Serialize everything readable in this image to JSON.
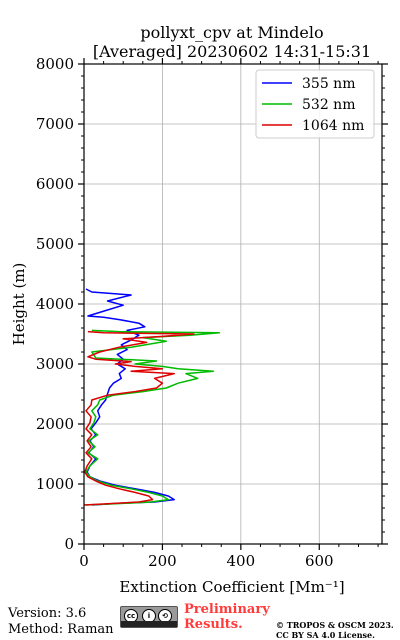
{
  "chart_data": {
    "type": "line",
    "title": "pollyxt_cpv at Mindelo",
    "subtitle": "[Averaged] 20230602 14:31-15:31",
    "xlabel": "Extinction Coefficient [Mm⁻¹]",
    "ylabel": "Height (m)",
    "xlim": [
      0,
      760
    ],
    "ylim": [
      0,
      8000
    ],
    "x_ticks": [
      0,
      200,
      400,
      600
    ],
    "y_ticks": [
      0,
      1000,
      2000,
      3000,
      4000,
      5000,
      6000,
      7000,
      8000
    ],
    "grid": true,
    "legend_position": "top-right",
    "series": [
      {
        "name": "355 nm",
        "color": "#0000ff",
        "points": [
          [
            20,
            650
          ],
          [
            90,
            680
          ],
          [
            180,
            700
          ],
          [
            230,
            740
          ],
          [
            215,
            800
          ],
          [
            180,
            860
          ],
          [
            130,
            920
          ],
          [
            80,
            980
          ],
          [
            40,
            1050
          ],
          [
            15,
            1120
          ],
          [
            8,
            1200
          ],
          [
            15,
            1300
          ],
          [
            30,
            1420
          ],
          [
            12,
            1520
          ],
          [
            25,
            1620
          ],
          [
            15,
            1720
          ],
          [
            30,
            1820
          ],
          [
            18,
            1920
          ],
          [
            30,
            2020
          ],
          [
            40,
            2120
          ],
          [
            35,
            2220
          ],
          [
            45,
            2320
          ],
          [
            55,
            2400
          ],
          [
            60,
            2500
          ],
          [
            65,
            2600
          ],
          [
            75,
            2680
          ],
          [
            95,
            2760
          ],
          [
            90,
            2840
          ],
          [
            105,
            2920
          ],
          [
            85,
            3000
          ],
          [
            100,
            3080
          ],
          [
            85,
            3160
          ],
          [
            110,
            3240
          ],
          [
            95,
            3320
          ],
          [
            120,
            3400
          ],
          [
            140,
            3480
          ],
          [
            110,
            3560
          ],
          [
            155,
            3620
          ],
          [
            140,
            3680
          ],
          [
            90,
            3740
          ],
          [
            50,
            3780
          ],
          [
            10,
            3800
          ],
          [
            60,
            3900
          ],
          [
            100,
            3980
          ],
          [
            60,
            4050
          ],
          [
            120,
            4150
          ],
          [
            20,
            4200
          ],
          [
            5,
            4250
          ]
        ]
      },
      {
        "name": "532 nm",
        "color": "#00bb00",
        "points": [
          [
            5,
            650
          ],
          [
            80,
            670
          ],
          [
            170,
            700
          ],
          [
            215,
            740
          ],
          [
            200,
            800
          ],
          [
            165,
            860
          ],
          [
            120,
            920
          ],
          [
            70,
            980
          ],
          [
            35,
            1050
          ],
          [
            15,
            1120
          ],
          [
            5,
            1200
          ],
          [
            15,
            1300
          ],
          [
            35,
            1420
          ],
          [
            10,
            1520
          ],
          [
            28,
            1620
          ],
          [
            12,
            1720
          ],
          [
            35,
            1820
          ],
          [
            15,
            1920
          ],
          [
            25,
            2020
          ],
          [
            30,
            2120
          ],
          [
            20,
            2220
          ],
          [
            35,
            2320
          ],
          [
            40,
            2400
          ],
          [
            75,
            2480
          ],
          [
            150,
            2540
          ],
          [
            210,
            2600
          ],
          [
            240,
            2680
          ],
          [
            290,
            2760
          ],
          [
            260,
            2840
          ],
          [
            330,
            2880
          ],
          [
            240,
            2920
          ],
          [
            200,
            2960
          ],
          [
            130,
            3000
          ],
          [
            185,
            3050
          ],
          [
            30,
            3100
          ],
          [
            20,
            3200
          ],
          [
            120,
            3280
          ],
          [
            210,
            3380
          ],
          [
            150,
            3440
          ],
          [
            270,
            3480
          ],
          [
            345,
            3520
          ],
          [
            90,
            3540
          ],
          [
            20,
            3560
          ]
        ]
      },
      {
        "name": "1064 nm",
        "color": "#dd0000",
        "points": [
          [
            0,
            650
          ],
          [
            60,
            670
          ],
          [
            140,
            700
          ],
          [
            175,
            740
          ],
          [
            165,
            800
          ],
          [
            130,
            860
          ],
          [
            90,
            920
          ],
          [
            55,
            980
          ],
          [
            30,
            1050
          ],
          [
            10,
            1120
          ],
          [
            2,
            1200
          ],
          [
            8,
            1300
          ],
          [
            20,
            1420
          ],
          [
            5,
            1520
          ],
          [
            18,
            1620
          ],
          [
            8,
            1720
          ],
          [
            20,
            1820
          ],
          [
            5,
            1920
          ],
          [
            15,
            2020
          ],
          [
            18,
            2120
          ],
          [
            5,
            2220
          ],
          [
            18,
            2320
          ],
          [
            20,
            2400
          ],
          [
            60,
            2480
          ],
          [
            130,
            2540
          ],
          [
            185,
            2600
          ],
          [
            200,
            2680
          ],
          [
            180,
            2760
          ],
          [
            230,
            2840
          ],
          [
            120,
            2880
          ],
          [
            200,
            2920
          ],
          [
            130,
            2960
          ],
          [
            80,
            3000
          ],
          [
            120,
            3040
          ],
          [
            30,
            3080
          ],
          [
            10,
            3120
          ],
          [
            40,
            3200
          ],
          [
            90,
            3280
          ],
          [
            160,
            3360
          ],
          [
            100,
            3420
          ],
          [
            200,
            3460
          ],
          [
            280,
            3500
          ],
          [
            50,
            3520
          ],
          [
            10,
            3540
          ]
        ]
      }
    ]
  },
  "footer": {
    "version": "Version: 3.6",
    "method": "Method: Raman",
    "preliminary_line1": "Preliminary",
    "preliminary_line2": "Results.",
    "copyright_line1": "© TROPOS & OSCM 2023.",
    "copyright_line2": "CC BY SA 4.0 License.",
    "cc_badge_icon": "cc-by-sa-badge"
  }
}
